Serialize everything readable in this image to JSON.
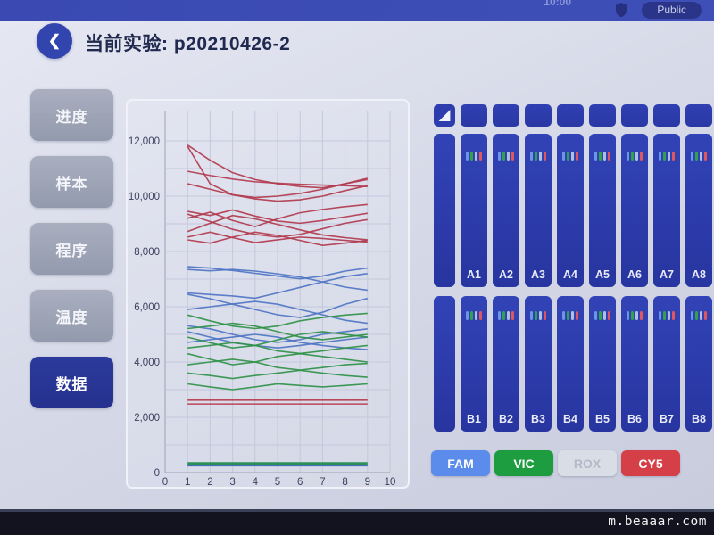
{
  "status_bar": {
    "time": "10:00",
    "public_label": "Public"
  },
  "header": {
    "back_glyph": "❮",
    "title": "当前实验: p20210426-2"
  },
  "sidebar": {
    "items": [
      {
        "label": "进度",
        "active": false
      },
      {
        "label": "样本",
        "active": false
      },
      {
        "label": "程序",
        "active": false
      },
      {
        "label": "温度",
        "active": false
      },
      {
        "label": "数据",
        "active": true
      }
    ]
  },
  "chart_data": {
    "type": "line",
    "x": [
      1,
      2,
      3,
      4,
      5,
      6,
      7,
      8,
      9
    ],
    "xlim": [
      0,
      10
    ],
    "ylim": [
      0,
      12600
    ],
    "x_ticks": [
      "0",
      "1",
      "2",
      "3",
      "4",
      "5",
      "6",
      "7",
      "8",
      "9",
      "10"
    ],
    "y_tick_values": [
      0,
      2000,
      4000,
      6000,
      8000,
      10000,
      12000
    ],
    "y_ticks": [
      "0",
      "2,000",
      "4,000",
      "6,000",
      "8,000",
      "10,000",
      "12,000"
    ],
    "grid": true,
    "title": "",
    "xlabel": "",
    "ylabel": "",
    "series": [
      {
        "name": "red-1",
        "color": "#b23a4e",
        "values": [
          11850,
          11300,
          10850,
          10600,
          10450,
          10350,
          10300,
          10450,
          10600
        ]
      },
      {
        "name": "red-2",
        "color": "#b23a4e",
        "values": [
          11800,
          10450,
          10050,
          9950,
          10000,
          10100,
          10250,
          10450,
          10650
        ]
      },
      {
        "name": "red-3",
        "color": "#b23a4e",
        "values": [
          10900,
          10750,
          10620,
          10520,
          10470,
          10430,
          10400,
          10380,
          10350
        ]
      },
      {
        "name": "red-4",
        "color": "#b23a4e",
        "values": [
          10450,
          10250,
          10050,
          9900,
          9820,
          9870,
          10000,
          10200,
          10380
        ]
      },
      {
        "name": "red-5",
        "color": "#b23a4e",
        "values": [
          9450,
          9300,
          9500,
          9280,
          9100,
          9020,
          9120,
          9250,
          9380
        ]
      },
      {
        "name": "red-6",
        "color": "#b23a4e",
        "values": [
          9350,
          9080,
          8800,
          8620,
          8520,
          8620,
          8820,
          9020,
          9150
        ]
      },
      {
        "name": "red-7",
        "color": "#b23a4e",
        "values": [
          9200,
          9420,
          9120,
          8900,
          9180,
          9400,
          9520,
          9620,
          9700
        ]
      },
      {
        "name": "red-8",
        "color": "#b23a4e",
        "values": [
          8720,
          9020,
          9300,
          9180,
          8980,
          8780,
          8600,
          8500,
          8420
        ]
      },
      {
        "name": "red-9",
        "color": "#b23a4e",
        "values": [
          8520,
          8700,
          8500,
          8320,
          8420,
          8520,
          8470,
          8400,
          8340
        ]
      },
      {
        "name": "red-10",
        "color": "#b23a4e",
        "values": [
          8420,
          8300,
          8520,
          8700,
          8580,
          8400,
          8220,
          8300,
          8400
        ]
      },
      {
        "name": "red-flat-1",
        "color": "#b8394b",
        "values": [
          2620,
          2620,
          2620,
          2620,
          2620,
          2620,
          2620,
          2620,
          2620
        ]
      },
      {
        "name": "red-flat-2",
        "color": "#b8394b",
        "values": [
          2480,
          2480,
          2480,
          2480,
          2480,
          2480,
          2480,
          2480,
          2480
        ]
      },
      {
        "name": "blue-1",
        "color": "#4f74c4",
        "values": [
          7450,
          7400,
          7310,
          7210,
          7110,
          7010,
          7110,
          7290,
          7400
        ]
      },
      {
        "name": "blue-2",
        "color": "#4f74c4",
        "values": [
          7350,
          7300,
          7350,
          7290,
          7190,
          7080,
          6900,
          6710,
          6600
        ]
      },
      {
        "name": "blue-3",
        "color": "#4f74c4",
        "values": [
          6500,
          6440,
          6390,
          6310,
          6500,
          6700,
          6900,
          7090,
          7200
        ]
      },
      {
        "name": "blue-4",
        "color": "#4f74c4",
        "values": [
          6450,
          6290,
          6090,
          5900,
          5710,
          5610,
          5800,
          6090,
          6300
        ]
      },
      {
        "name": "blue-5",
        "color": "#4f74c4",
        "values": [
          5900,
          6000,
          6100,
          6190,
          6090,
          5900,
          5710,
          5510,
          5400
        ]
      },
      {
        "name": "blue-6",
        "color": "#4f74c4",
        "values": [
          5310,
          5200,
          5000,
          4810,
          4710,
          4810,
          5000,
          5100,
          5200
        ]
      },
      {
        "name": "blue-7",
        "color": "#4f74c4",
        "values": [
          5100,
          4900,
          4710,
          4600,
          4510,
          4600,
          4710,
          4810,
          4900
        ]
      },
      {
        "name": "blue-8",
        "color": "#4f74c4",
        "values": [
          4710,
          4810,
          4900,
          5000,
          4900,
          4710,
          4600,
          4510,
          4450
        ]
      },
      {
        "name": "green-1",
        "color": "#2f9147",
        "values": [
          5700,
          5490,
          5300,
          5210,
          5300,
          5490,
          5610,
          5700,
          5760
        ]
      },
      {
        "name": "green-2",
        "color": "#2f9147",
        "values": [
          5210,
          5300,
          5400,
          5300,
          5100,
          4900,
          4810,
          4900,
          5000
        ]
      },
      {
        "name": "green-3",
        "color": "#2f9147",
        "values": [
          4900,
          4700,
          4510,
          4600,
          4800,
          5000,
          5100,
          5000,
          4900
        ]
      },
      {
        "name": "green-4",
        "color": "#2f9147",
        "values": [
          4510,
          4600,
          4700,
          4600,
          4400,
          4310,
          4400,
          4510,
          4600
        ]
      },
      {
        "name": "green-5",
        "color": "#2f9147",
        "values": [
          4300,
          4100,
          3900,
          4000,
          4200,
          4300,
          4200,
          4100,
          4000
        ]
      },
      {
        "name": "green-6",
        "color": "#2f9147",
        "values": [
          3900,
          4000,
          4100,
          4000,
          3800,
          3710,
          3800,
          3900,
          3950
        ]
      },
      {
        "name": "green-7",
        "color": "#2f9147",
        "values": [
          3600,
          3510,
          3400,
          3510,
          3600,
          3700,
          3600,
          3510,
          3450
        ]
      },
      {
        "name": "green-8",
        "color": "#2f9147",
        "values": [
          3210,
          3100,
          3000,
          3100,
          3210,
          3150,
          3100,
          3150,
          3210
        ]
      },
      {
        "name": "blue-flat-bottom",
        "color": "#3f66b8",
        "width": 2.4,
        "values": [
          260,
          260,
          260,
          260,
          260,
          260,
          260,
          260,
          260
        ]
      },
      {
        "name": "green-flat-bottom",
        "color": "#1f8a4c",
        "width": 3,
        "values": [
          330,
          330,
          330,
          330,
          330,
          330,
          330,
          330,
          330
        ]
      }
    ]
  },
  "plate": {
    "indicator_colors": [
      "#6a95e8",
      "#33a04e",
      "#aebfe6",
      "#e0565e"
    ],
    "rows": [
      {
        "name": "A",
        "wells": [
          "A1",
          "A2",
          "A3",
          "A4",
          "A5",
          "A6",
          "A7",
          "A8"
        ]
      },
      {
        "name": "B",
        "wells": [
          "B1",
          "B2",
          "B3",
          "B4",
          "B5",
          "B6",
          "B7",
          "B8"
        ]
      }
    ]
  },
  "channels": [
    {
      "label": "FAM",
      "bg": "#5b8cec",
      "fg": "#ffffff",
      "active": true
    },
    {
      "label": "VIC",
      "bg": "#1e9c40",
      "fg": "#ffffff",
      "active": true
    },
    {
      "label": "ROX",
      "bg": "#d9dde6",
      "fg": "#b3b9c6",
      "active": false
    },
    {
      "label": "CY5",
      "bg": "#d43f48",
      "fg": "#ffffff",
      "active": true
    }
  ],
  "watermark": "m.beaaar.com"
}
